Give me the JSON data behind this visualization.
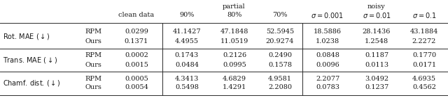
{
  "rows": [
    {
      "label": "Rot. MAE $({\\downarrow})$",
      "method": "RPM",
      "values": [
        "0.0299",
        "41.1427",
        "47.1848",
        "52.5945",
        "18.5886",
        "28.1436",
        "43.1884"
      ]
    },
    {
      "label": "",
      "method": "Ours",
      "values": [
        "0.1371",
        "4.4955",
        "11.0519",
        "20.9274",
        "1.0238",
        "1.2548",
        "2.2272"
      ]
    },
    {
      "label": "Trans. MAE $({\\downarrow})$",
      "method": "RPM",
      "values": [
        "0.0002",
        "0.1743",
        "0.2126",
        "0.2490",
        "0.0848",
        "0.1187",
        "0.1770"
      ]
    },
    {
      "label": "",
      "method": "Ours",
      "values": [
        "0.0015",
        "0.0484",
        "0.0995",
        "0.1578",
        "0.0096",
        "0.0113",
        "0.0171"
      ]
    },
    {
      "label": "Chamf. dist. $({\\downarrow})$",
      "method": "RPM",
      "values": [
        "0.0005",
        "4.3413",
        "4.6829",
        "4.9581",
        "2.2077",
        "3.0492",
        "4.6935"
      ]
    },
    {
      "label": "",
      "method": "Ours",
      "values": [
        "0.0054",
        "0.5498",
        "1.4291",
        "2.2080",
        "0.0783",
        "0.1237",
        "0.4562"
      ]
    }
  ],
  "text_color": "#1a1a1a",
  "line_color": "#2a2a2a",
  "font_size": 7.0,
  "figwidth": 6.4,
  "figheight": 1.41,
  "dpi": 100
}
